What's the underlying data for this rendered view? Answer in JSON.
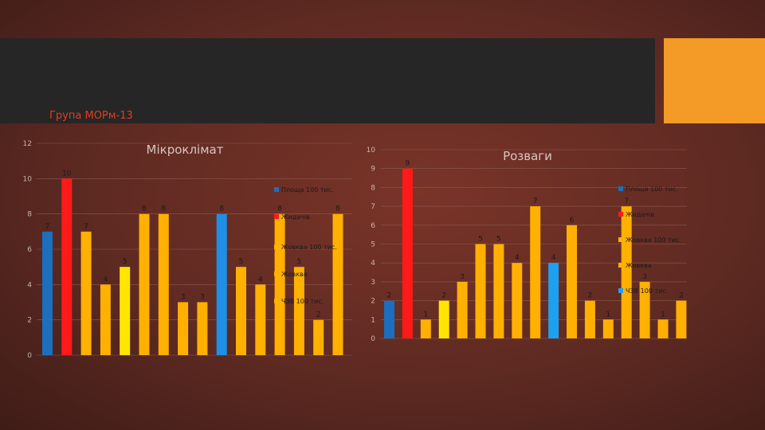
{
  "header": {
    "group_label": "Група МОРм-13"
  },
  "colors": {
    "band": "#262626",
    "accent": "#f39a27"
  },
  "chart_data": [
    {
      "type": "bar",
      "title": "Мікроклімат",
      "ylim": [
        0,
        12
      ],
      "yticks": [
        0,
        2,
        4,
        6,
        8,
        10,
        12
      ],
      "grid": true,
      "legend_position": "right",
      "values": [
        7,
        10,
        7,
        4,
        5,
        8,
        8,
        3,
        3,
        8,
        5,
        4,
        8,
        5,
        2,
        8
      ],
      "bar_colors": [
        "#1b6fbe",
        "#ff1a1a",
        "#ffb000",
        "#ffb000",
        "#ffe600",
        "#ffb000",
        "#ffb000",
        "#ffb000",
        "#ffb000",
        "#1e90e6",
        "#ffb000",
        "#ffb000",
        "#ffb000",
        "#ffb000",
        "#ffb000",
        "#ffb000"
      ],
      "legend": [
        {
          "label": "Площа 100 тис.",
          "color": "#1b6fbe"
        },
        {
          "label": "Жидачів",
          "color": "#ff1a1a"
        },
        {
          "label": "Жовква 100 тис.",
          "color": "#ffb000"
        },
        {
          "label": "Жовква",
          "color": "#ffb000"
        },
        {
          "label": "ЧЗВ 100 тис.",
          "color": "#ffb000"
        }
      ]
    },
    {
      "type": "bar",
      "title": "Розваги",
      "ylim": [
        0,
        10
      ],
      "yticks": [
        0,
        1,
        2,
        3,
        4,
        5,
        6,
        7,
        8,
        9,
        10
      ],
      "grid": true,
      "legend_position": "right",
      "values": [
        2,
        9,
        1,
        2,
        3,
        5,
        5,
        4,
        7,
        4,
        6,
        2,
        1,
        7,
        3,
        1,
        2
      ],
      "bar_colors": [
        "#1b6fbe",
        "#ff1a1a",
        "#ffb000",
        "#ffe600",
        "#ffb000",
        "#ffb000",
        "#ffb000",
        "#ffb000",
        "#ffb000",
        "#1ea0f0",
        "#ffb000",
        "#ffb000",
        "#ffb000",
        "#ffb000",
        "#ffb000",
        "#ffb000",
        "#ffb000"
      ],
      "legend": [
        {
          "label": "Площа 100 тис.",
          "color": "#1b6fbe"
        },
        {
          "label": "Жидачів",
          "color": "#ff1a1a"
        },
        {
          "label": "Жовква 100 тис.",
          "color": "#ffb000"
        },
        {
          "label": "Жовква",
          "color": "#ffb000"
        },
        {
          "label": "ЧЗВ 100 тис.",
          "color": "#1ea0f0"
        }
      ]
    }
  ]
}
